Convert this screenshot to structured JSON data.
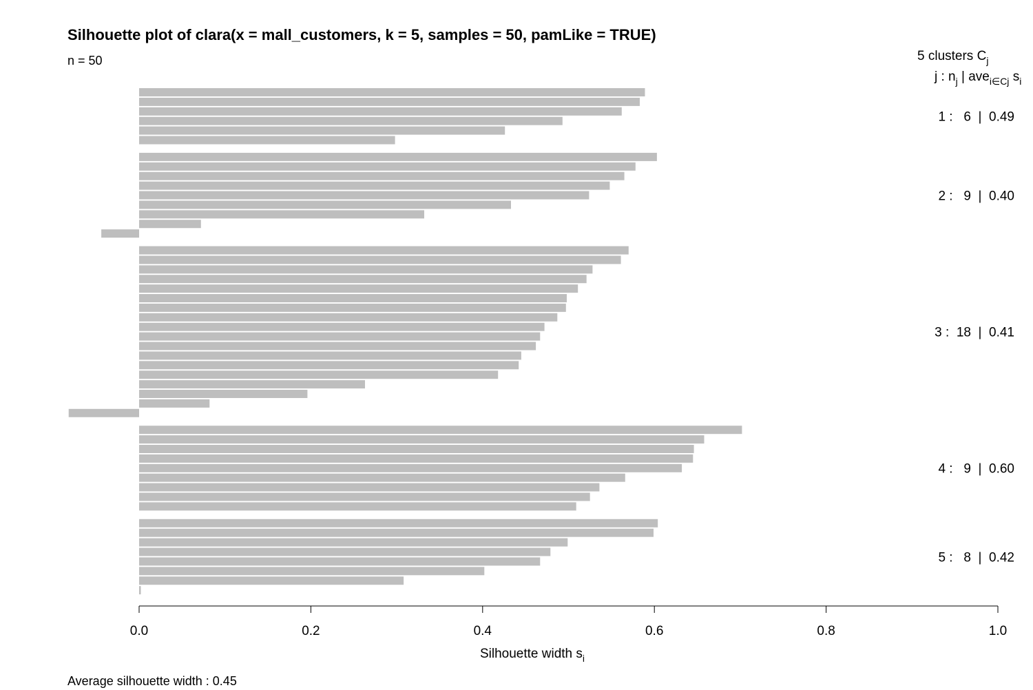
{
  "chart_data": {
    "type": "bar",
    "orientation": "horizontal",
    "title": "Silhouette plot of clara(x = mall_customers, k = 5, samples = 50, pamLike = TRUE)",
    "subtitle": "n = 50",
    "legend_header": {
      "line1_prefix": "5  clusters  C",
      "line1_sub": "j",
      "line2_a": "j :  n",
      "line2_a_sub": "j",
      "line2_b": " | ave",
      "line2_b_sub": "i∈Cj",
      "line2_c": "  s",
      "line2_c_sub": "i"
    },
    "xlabel": "Silhouette width s",
    "xlabel_sub": "i",
    "xlim": [
      0,
      1
    ],
    "xticks": [
      "0.0",
      "0.2",
      "0.4",
      "0.6",
      "0.8",
      "1.0"
    ],
    "bar_color": "#bebebe",
    "clusters": [
      {
        "id": 1,
        "n": 6,
        "avg": "0.49",
        "label": "1 :   6  |  0.49",
        "values": [
          0.589,
          0.583,
          0.562,
          0.493,
          0.426,
          0.298
        ]
      },
      {
        "id": 2,
        "n": 9,
        "avg": "0.40",
        "label": "2 :   9  |  0.40",
        "values": [
          0.603,
          0.578,
          0.565,
          0.548,
          0.524,
          0.433,
          0.332,
          0.072,
          -0.044
        ]
      },
      {
        "id": 3,
        "n": 18,
        "avg": "0.41",
        "label": "3 :  18  |  0.41",
        "values": [
          0.57,
          0.561,
          0.528,
          0.521,
          0.511,
          0.498,
          0.497,
          0.487,
          0.472,
          0.467,
          0.462,
          0.445,
          0.442,
          0.418,
          0.263,
          0.196,
          0.082,
          -0.082
        ]
      },
      {
        "id": 4,
        "n": 9,
        "avg": "0.60",
        "label": "4 :   9  |  0.60",
        "values": [
          0.702,
          0.658,
          0.646,
          0.645,
          0.632,
          0.566,
          0.536,
          0.525,
          0.509
        ]
      },
      {
        "id": 5,
        "n": 8,
        "avg": "0.42",
        "label": "5 :   8  |  0.42",
        "values": [
          0.604,
          0.599,
          0.499,
          0.479,
          0.467,
          0.402,
          0.308,
          0.002
        ]
      }
    ],
    "footer": "Average silhouette width :  0.45"
  }
}
